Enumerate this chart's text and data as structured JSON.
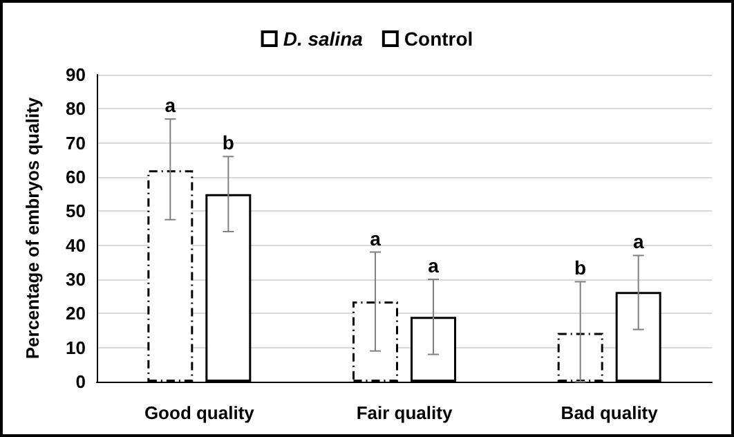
{
  "chart_data": {
    "type": "bar",
    "ylabel": "Percentage of embryos quality",
    "categories": [
      "Good quality",
      "Fair quality",
      "Bad quality"
    ],
    "series": [
      {
        "name": "D. salina",
        "color": "#ffffff",
        "line_style": "dashed",
        "values": [
          62,
          23.5,
          14.3
        ],
        "value_labels": [
          "a",
          "a",
          "b"
        ],
        "errors": [
          [
            47.5,
            77
          ],
          [
            9,
            38
          ],
          [
            0,
            29.3
          ]
        ]
      },
      {
        "name": "Control",
        "color": "#ffffff",
        "line_style": "solid",
        "values": [
          55,
          19,
          26.3
        ],
        "value_labels": [
          "b",
          "a",
          "a"
        ],
        "errors": [
          [
            44,
            66
          ],
          [
            8,
            30
          ],
          [
            15.3,
            37
          ]
        ]
      }
    ],
    "ylim": [
      0,
      90
    ],
    "yticks": [
      0,
      10,
      20,
      30,
      40,
      50,
      60,
      70,
      80,
      90
    ],
    "grid": "y",
    "legend": "top"
  }
}
